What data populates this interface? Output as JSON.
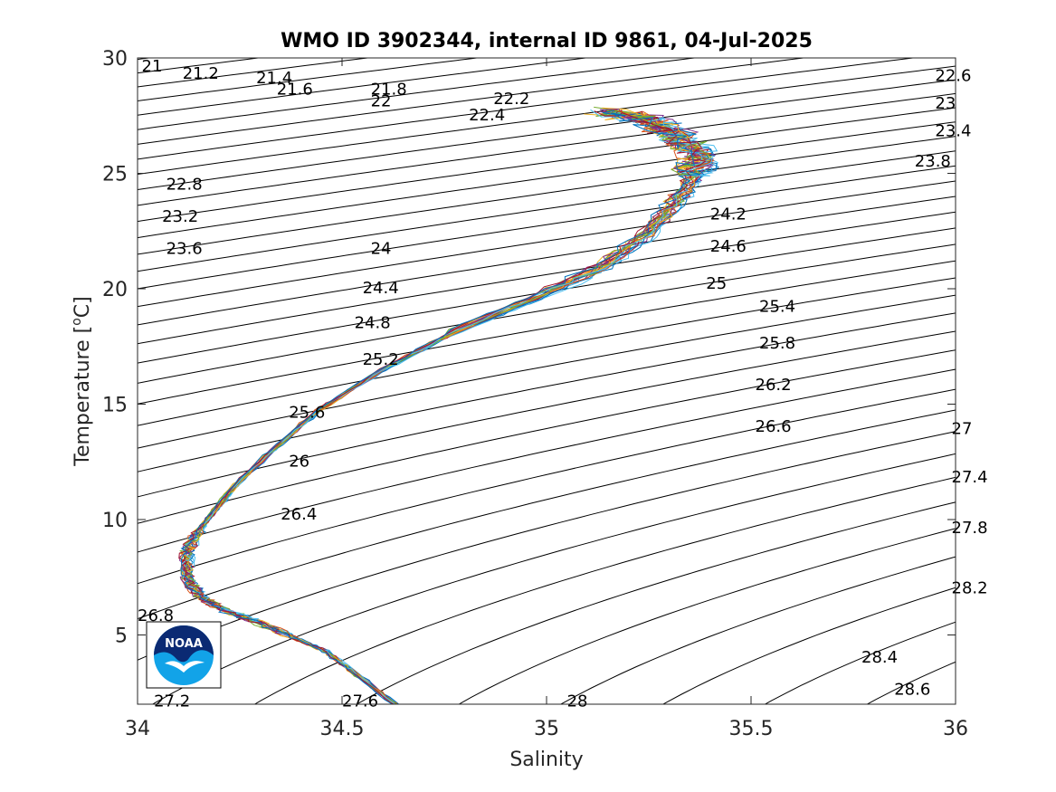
{
  "chart_data": {
    "type": "line",
    "title": "WMO ID 3902344, internal ID 9861, 04-Jul-2025",
    "xlabel": "Salinity",
    "ylabel_prefix": "Temperature [",
    "ylabel_unit_sup": "o",
    "ylabel_unit": "C]",
    "xlim": [
      34,
      36
    ],
    "ylim": [
      2,
      30
    ],
    "xticks": [
      {
        "value": 34,
        "label": "34"
      },
      {
        "value": 34.5,
        "label": "34.5"
      },
      {
        "value": 35,
        "label": "35"
      },
      {
        "value": 35.5,
        "label": "35.5"
      },
      {
        "value": 36,
        "label": "36"
      }
    ],
    "yticks": [
      {
        "value": 5,
        "label": "5"
      },
      {
        "value": 10,
        "label": "10"
      },
      {
        "value": 15,
        "label": "15"
      },
      {
        "value": 20,
        "label": "20"
      },
      {
        "value": 25,
        "label": "25"
      },
      {
        "value": 30,
        "label": "30"
      }
    ],
    "grid": false,
    "isopycnal_color": "#000000",
    "isopycnal_levels": [
      21,
      21.2,
      21.4,
      21.6,
      21.8,
      22,
      22.2,
      22.4,
      22.6,
      22.8,
      23,
      23.2,
      23.4,
      23.6,
      23.8,
      24,
      24.2,
      24.4,
      24.6,
      24.8,
      25,
      25.2,
      25.4,
      25.6,
      25.8,
      26,
      26.2,
      26.4,
      26.6,
      26.8,
      27,
      27.2,
      27.4,
      27.6,
      27.8,
      28,
      28.2,
      28.4,
      28.6
    ],
    "isopycnal_labels": [
      {
        "label": "21",
        "s": 34.01,
        "t": 29.6
      },
      {
        "label": "21.2",
        "s": 34.11,
        "t": 29.3
      },
      {
        "label": "21.4",
        "s": 34.29,
        "t": 29.1
      },
      {
        "label": "21.6",
        "s": 34.34,
        "t": 28.6
      },
      {
        "label": "21.8",
        "s": 34.57,
        "t": 28.6
      },
      {
        "label": "22",
        "s": 34.57,
        "t": 28.1
      },
      {
        "label": "22.2",
        "s": 34.87,
        "t": 28.2
      },
      {
        "label": "22.4",
        "s": 34.81,
        "t": 27.5
      },
      {
        "label": "22.6",
        "s": 35.95,
        "t": 29.2
      },
      {
        "label": "23",
        "s": 35.95,
        "t": 28.0
      },
      {
        "label": "23.4",
        "s": 35.95,
        "t": 26.8
      },
      {
        "label": "23.8",
        "s": 35.9,
        "t": 25.5
      },
      {
        "label": "22.8",
        "s": 34.07,
        "t": 24.5
      },
      {
        "label": "23.2",
        "s": 34.06,
        "t": 23.1
      },
      {
        "label": "23.6",
        "s": 34.07,
        "t": 21.7
      },
      {
        "label": "24",
        "s": 34.57,
        "t": 21.7
      },
      {
        "label": "24.2",
        "s": 35.4,
        "t": 23.2
      },
      {
        "label": "24.6",
        "s": 35.4,
        "t": 21.8
      },
      {
        "label": "24.4",
        "s": 34.55,
        "t": 20.0
      },
      {
        "label": "25",
        "s": 35.39,
        "t": 20.2
      },
      {
        "label": "24.8",
        "s": 34.53,
        "t": 18.5
      },
      {
        "label": "25.4",
        "s": 35.52,
        "t": 19.2
      },
      {
        "label": "25.8",
        "s": 35.52,
        "t": 17.6
      },
      {
        "label": "25.2",
        "s": 34.55,
        "t": 16.9
      },
      {
        "label": "26.2",
        "s": 35.51,
        "t": 15.8
      },
      {
        "label": "25.6",
        "s": 34.37,
        "t": 14.6
      },
      {
        "label": "26.6",
        "s": 35.51,
        "t": 14.0
      },
      {
        "label": "27",
        "s": 35.99,
        "t": 13.9
      },
      {
        "label": "26",
        "s": 34.37,
        "t": 12.5
      },
      {
        "label": "27.4",
        "s": 35.99,
        "t": 11.8
      },
      {
        "label": "26.4",
        "s": 34.35,
        "t": 10.2
      },
      {
        "label": "27.8",
        "s": 35.99,
        "t": 9.6
      },
      {
        "label": "28.2",
        "s": 35.99,
        "t": 7.0
      },
      {
        "label": "26.8",
        "s": 34.0,
        "t": 5.8
      },
      {
        "label": "28.4",
        "s": 35.77,
        "t": 4.0
      },
      {
        "label": "28.6",
        "s": 35.85,
        "t": 2.6
      },
      {
        "label": "27.2",
        "s": 34.04,
        "t": 2.1
      },
      {
        "label": "27.6",
        "s": 34.5,
        "t": 2.1
      },
      {
        "label": "28",
        "s": 35.05,
        "t": 2.1
      }
    ],
    "profile_colors": [
      "#0072bd",
      "#d95319",
      "#edb120",
      "#7e2f8e",
      "#77ac30",
      "#4dbeee",
      "#a2142f"
    ],
    "mean_profile": [
      {
        "s": 34.63,
        "t": 2.0
      },
      {
        "s": 34.52,
        "t": 3.5
      },
      {
        "s": 34.46,
        "t": 4.3
      },
      {
        "s": 34.38,
        "t": 4.9
      },
      {
        "s": 34.29,
        "t": 5.6
      },
      {
        "s": 34.22,
        "t": 6.0
      },
      {
        "s": 34.15,
        "t": 6.7
      },
      {
        "s": 34.12,
        "t": 7.5
      },
      {
        "s": 34.12,
        "t": 8.5
      },
      {
        "s": 34.14,
        "t": 9.3
      },
      {
        "s": 34.18,
        "t": 10.2
      },
      {
        "s": 34.24,
        "t": 11.5
      },
      {
        "s": 34.33,
        "t": 13.0
      },
      {
        "s": 34.44,
        "t": 14.7
      },
      {
        "s": 34.6,
        "t": 16.5
      },
      {
        "s": 34.78,
        "t": 18.2
      },
      {
        "s": 34.97,
        "t": 19.6
      },
      {
        "s": 35.13,
        "t": 20.9
      },
      {
        "s": 35.24,
        "t": 22.3
      },
      {
        "s": 35.31,
        "t": 23.6
      },
      {
        "s": 35.36,
        "t": 24.9
      },
      {
        "s": 35.37,
        "t": 25.8
      },
      {
        "s": 35.32,
        "t": 26.6
      },
      {
        "s": 35.25,
        "t": 27.3
      },
      {
        "s": 35.15,
        "t": 27.7
      }
    ]
  },
  "logo": {
    "text": "NOAA",
    "navy": "#0b2a73",
    "sky": "#12a3e8"
  }
}
